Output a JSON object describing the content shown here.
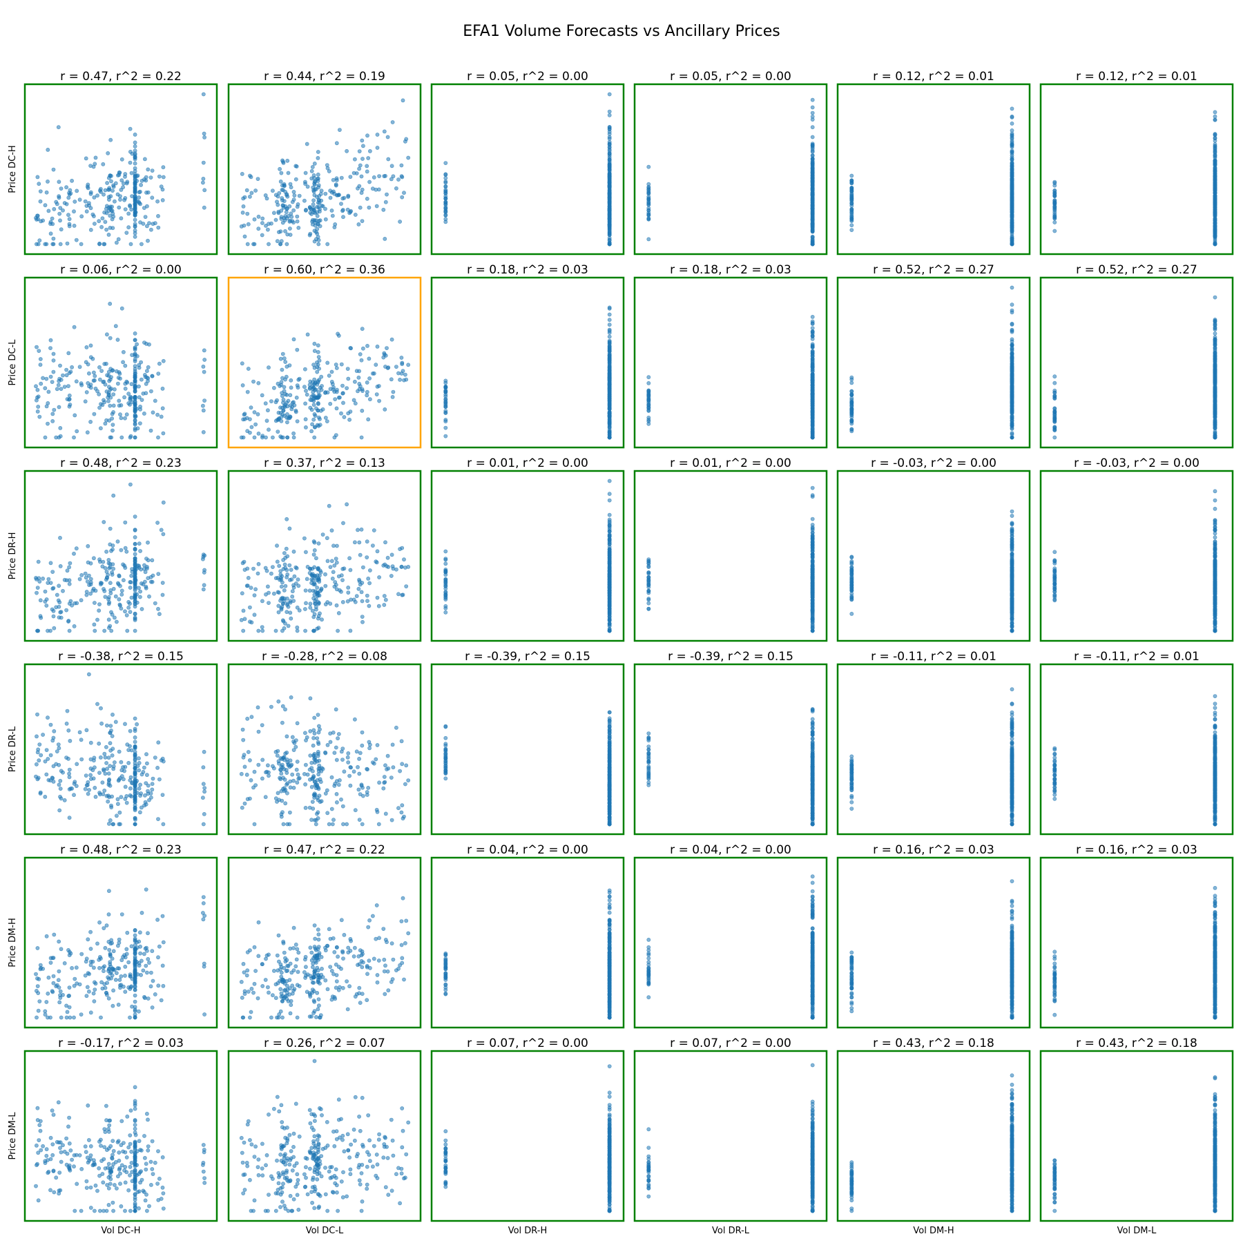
{
  "title": "EFA1 Volume Forecasts vs Ancillary Prices",
  "colors": {
    "point": "#1f77b4",
    "frame_default": "#008000",
    "frame_highlight": "#ffa500"
  },
  "chart_data": {
    "type": "scatter",
    "title": "EFA1 Volume Forecasts vs Ancillary Prices",
    "grid": false,
    "legend": "none",
    "col_labels": [
      "Vol DC-H",
      "Vol DC-L",
      "Vol DR-H",
      "Vol DR-L",
      "Vol DM-H",
      "Vol DM-L"
    ],
    "row_labels": [
      "Price DC-H",
      "Price DC-L",
      "Price DR-H",
      "Price DR-L",
      "Price DM-H",
      "Price DM-L"
    ],
    "r": [
      [
        0.47,
        0.44,
        0.05,
        0.05,
        0.12,
        0.12
      ],
      [
        0.06,
        0.6,
        0.18,
        0.18,
        0.52,
        0.52
      ],
      [
        0.48,
        0.37,
        0.01,
        0.01,
        -0.03,
        -0.03
      ],
      [
        -0.38,
        -0.28,
        -0.39,
        -0.39,
        -0.11,
        -0.11
      ],
      [
        0.48,
        0.47,
        0.04,
        0.04,
        0.16,
        0.16
      ],
      [
        -0.17,
        0.26,
        0.07,
        0.07,
        0.43,
        0.43
      ]
    ],
    "r2": [
      [
        0.22,
        0.19,
        0.0,
        0.0,
        0.01,
        0.01
      ],
      [
        0.0,
        0.36,
        0.03,
        0.03,
        0.27,
        0.27
      ],
      [
        0.23,
        0.13,
        0.0,
        0.0,
        0.0,
        0.0
      ],
      [
        0.15,
        0.08,
        0.15,
        0.15,
        0.01,
        0.01
      ],
      [
        0.23,
        0.22,
        0.0,
        0.0,
        0.03,
        0.03
      ],
      [
        0.03,
        0.07,
        0.0,
        0.0,
        0.18,
        0.18
      ]
    ],
    "subplot_titles": [
      [
        "r = 0.47, r^2 = 0.22",
        "r = 0.44, r^2 = 0.19",
        "r = 0.05, r^2 = 0.00",
        "r = 0.05, r^2 = 0.00",
        "r = 0.12, r^2 = 0.01",
        "r = 0.12, r^2 = 0.01"
      ],
      [
        "r = 0.06, r^2 = 0.00",
        "r = 0.60, r^2 = 0.36",
        "r = 0.18, r^2 = 0.03",
        "r = 0.18, r^2 = 0.03",
        "r = 0.52, r^2 = 0.27",
        "r = 0.52, r^2 = 0.27"
      ],
      [
        "r = 0.48, r^2 = 0.23",
        "r = 0.37, r^2 = 0.13",
        "r = 0.01, r^2 = 0.00",
        "r = 0.01, r^2 = 0.00",
        "r = -0.03, r^2 = 0.00",
        "r = -0.03, r^2 = 0.00"
      ],
      [
        "r = -0.38, r^2 = 0.15",
        "r = -0.28, r^2 = 0.08",
        "r = -0.39, r^2 = 0.15",
        "r = -0.39, r^2 = 0.15",
        "r = -0.11, r^2 = 0.01",
        "r = -0.11, r^2 = 0.01"
      ],
      [
        "r = 0.48, r^2 = 0.23",
        "r = 0.47, r^2 = 0.22",
        "r = 0.04, r^2 = 0.00",
        "r = 0.04, r^2 = 0.00",
        "r = 0.16, r^2 = 0.03",
        "r = 0.16, r^2 = 0.03"
      ],
      [
        "r = -0.17, r^2 = 0.03",
        "r = 0.26, r^2 = 0.07",
        "r = 0.07, r^2 = 0.00",
        "r = 0.07, r^2 = 0.00",
        "r = 0.43, r^2 = 0.18",
        "r = 0.43, r^2 = 0.18"
      ]
    ],
    "highlighted_cell": {
      "row": 1,
      "col": 1
    },
    "axes_ticks_shown": false
  }
}
